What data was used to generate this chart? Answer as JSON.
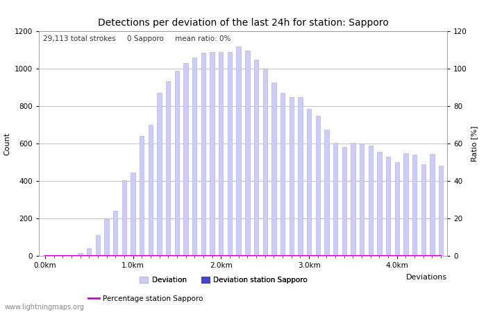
{
  "title": "Detections per deviation of the last 24h for station: Sapporo",
  "subtitle": "29,113 total strokes     0 Sapporo     mean ratio: 0%",
  "xlabel": "Deviations",
  "ylabel_left": "Count",
  "ylabel_right": "Ratio [%]",
  "ylim_left": [
    0,
    1200
  ],
  "ylim_right": [
    0,
    120
  ],
  "yticks_left": [
    0,
    200,
    400,
    600,
    800,
    1000,
    1200
  ],
  "yticks_right": [
    0,
    20,
    40,
    60,
    80,
    100,
    120
  ],
  "xtick_labels": [
    "0.0km",
    "1.0km",
    "2.0km",
    "3.0km",
    "4.0km"
  ],
  "xtick_positions": [
    0,
    10,
    20,
    30,
    40
  ],
  "bar_color": "#ccccff",
  "bar_edge_color": "#aaaacc",
  "station_bar_color": "#4444cc",
  "station_bar_edge_color": "#3333aa",
  "ratio_line_color": "#cc00cc",
  "background_color": "#ffffff",
  "grid_color": "#aaaaaa",
  "watermark": "www.lightningmaps.org",
  "legend_deviation": "Deviation",
  "legend_station": "Deviation station Sapporo",
  "legend_percentage": "Percentage station Sapporo",
  "bar_values": [
    5,
    3,
    2,
    4,
    15,
    40,
    110,
    195,
    240,
    405,
    445,
    640,
    700,
    870,
    935,
    990,
    1030,
    1060,
    1085,
    1090,
    1090,
    1090,
    1120,
    1095,
    1050,
    1000,
    925,
    870,
    850,
    850,
    785,
    750,
    675,
    605,
    580,
    605,
    600,
    590,
    555,
    530,
    500,
    550,
    540,
    490,
    545,
    480
  ],
  "station_bar_values": [
    0,
    0,
    0,
    0,
    0,
    0,
    0,
    0,
    0,
    0,
    0,
    0,
    0,
    0,
    0,
    0,
    0,
    0,
    0,
    0,
    0,
    0,
    0,
    0,
    0,
    0,
    0,
    0,
    0,
    0,
    0,
    0,
    0,
    0,
    0,
    0,
    0,
    0,
    0,
    0,
    0,
    0,
    0,
    0,
    0,
    0
  ],
  "ratio_values": [
    0,
    0,
    0,
    0,
    0,
    0,
    0,
    0,
    0,
    0,
    0,
    0,
    0,
    0,
    0,
    0,
    0,
    0,
    0,
    0,
    0,
    0,
    0,
    0,
    0,
    0,
    0,
    0,
    0,
    0,
    0,
    0,
    0,
    0,
    0,
    0,
    0,
    0,
    0,
    0,
    0,
    0,
    0,
    0,
    0,
    0
  ],
  "title_fontsize": 10,
  "subtitle_fontsize": 7.5,
  "axis_fontsize": 8,
  "tick_fontsize": 7.5,
  "legend_fontsize": 7.5,
  "watermark_fontsize": 7
}
